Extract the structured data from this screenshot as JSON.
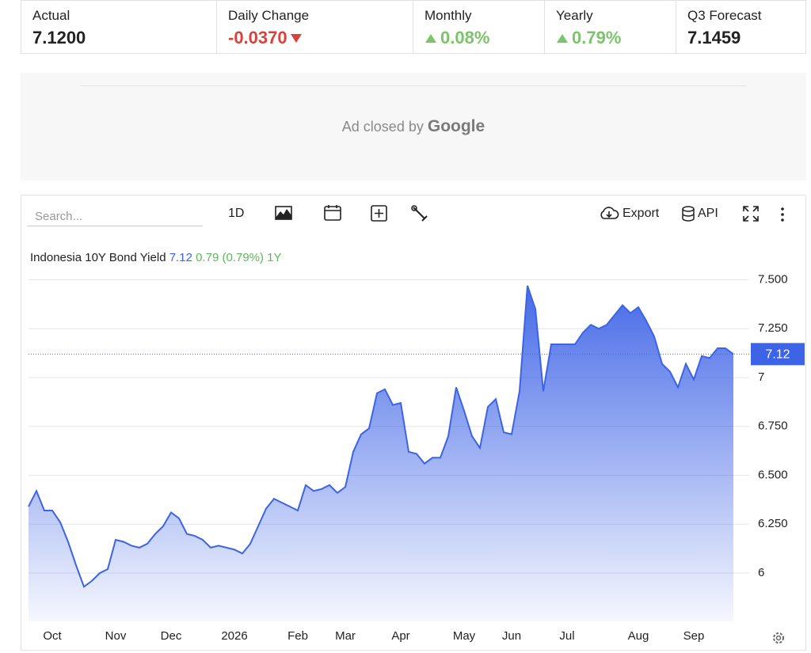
{
  "stats": [
    {
      "label": "Actual",
      "value": "7.1200"
    },
    {
      "label": "Daily Change",
      "value": "-0.0370"
    },
    {
      "label": "Monthly",
      "value": "0.08%"
    },
    {
      "label": "Yearly",
      "value": "0.79%"
    },
    {
      "label": "Q3 Forecast",
      "value": "7.1459"
    }
  ],
  "ad": {
    "text": "Ad closed by",
    "brand": "Google"
  },
  "toolbar": {
    "search": "Search...",
    "interval": "1D",
    "export": "Export",
    "api": "API"
  },
  "chart_data": {
    "type": "area",
    "legend": {
      "name": "Indonesia 10Y Bond Yield",
      "value": "7.12",
      "change": "0.79",
      "change_pct": "(0.79%)",
      "period": "1Y"
    },
    "color": "#3d63e6",
    "grid": true,
    "categories": [
      null,
      null,
      null,
      "Oct",
      null,
      null,
      null,
      null,
      null,
      null,
      null,
      "Nov",
      null,
      null,
      null,
      null,
      null,
      null,
      "Dec",
      null,
      null,
      null,
      null,
      null,
      null,
      null,
      "2026",
      null,
      null,
      null,
      null,
      null,
      null,
      null,
      "Feb",
      null,
      null,
      null,
      null,
      null,
      "Mar",
      null,
      null,
      null,
      null,
      null,
      null,
      "Apr",
      null,
      null,
      null,
      null,
      null,
      null,
      null,
      "May",
      null,
      null,
      null,
      null,
      null,
      "Jun",
      null,
      null,
      null,
      null,
      null,
      null,
      "Jul",
      null,
      null,
      null,
      null,
      null,
      null,
      null,
      null,
      "Aug",
      null,
      null,
      null,
      null,
      null,
      null,
      "Sep",
      null,
      null,
      null,
      null,
      null
    ],
    "values": [
      6.34,
      6.42,
      6.32,
      6.32,
      6.26,
      6.16,
      6.04,
      5.93,
      5.96,
      6.0,
      6.02,
      6.17,
      6.16,
      6.14,
      6.13,
      6.15,
      6.2,
      6.24,
      6.31,
      6.28,
      6.2,
      6.19,
      6.17,
      6.13,
      6.14,
      6.13,
      6.12,
      6.1,
      6.15,
      6.24,
      6.33,
      6.38,
      6.36,
      6.34,
      6.32,
      6.45,
      6.42,
      6.43,
      6.45,
      6.41,
      6.44,
      6.62,
      6.71,
      6.74,
      6.92,
      6.94,
      6.86,
      6.87,
      6.62,
      6.61,
      6.56,
      6.59,
      6.59,
      6.7,
      6.95,
      6.83,
      6.7,
      6.64,
      6.85,
      6.89,
      6.72,
      6.71,
      6.93,
      7.47,
      7.35,
      6.93,
      7.17,
      7.17,
      7.17,
      7.17,
      7.23,
      7.27,
      7.25,
      7.27,
      7.32,
      7.37,
      7.33,
      7.36,
      7.29,
      7.21,
      7.07,
      7.03,
      6.95,
      7.07,
      6.99,
      7.11,
      7.1,
      7.15,
      7.15,
      7.12
    ],
    "last_value": 7.12,
    "ylim": [
      5.753,
      7.737
    ],
    "yticks": [
      6,
      {
        "value": 6.25,
        "label": "6.250"
      },
      {
        "value": 6.5,
        "label": "6.500"
      },
      {
        "value": 6.75,
        "label": "6.750"
      },
      7,
      {
        "value": 7.25,
        "label": "7.250"
      },
      {
        "value": 7.5,
        "label": "7.500"
      }
    ]
  }
}
